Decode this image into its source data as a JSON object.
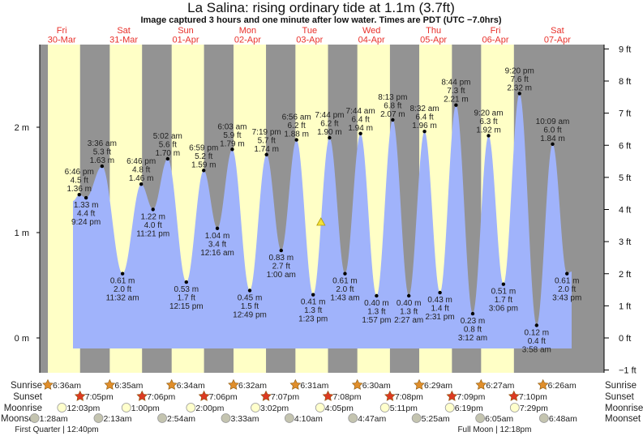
{
  "title": "La Salina: rising  ordinary tide at 1.1m (3.7ft)",
  "subtitle": "Image captured 3 hours and one minute after low water. Times are PDT (UTC −7.0hrs)",
  "colors": {
    "day": "#ffffc6",
    "night": "#939393",
    "water": "#a0b3fb",
    "date_label": "#e8302a",
    "sunrise": "#e08e2b",
    "sunset": "#dc3a22",
    "moonrise": "#ffffcc",
    "moonset": "#c4c4b0",
    "marker": "#f4e23a"
  },
  "chart_data": {
    "type": "area",
    "title": "La Salina: rising  ordinary tide at 1.1m (3.7ft)",
    "days": [
      {
        "weekday": "Fri",
        "date": "30-Mar"
      },
      {
        "weekday": "Sat",
        "date": "31-Mar"
      },
      {
        "weekday": "Sun",
        "date": "01-Apr"
      },
      {
        "weekday": "Mon",
        "date": "02-Apr"
      },
      {
        "weekday": "Tue",
        "date": "03-Apr"
      },
      {
        "weekday": "Wed",
        "date": "04-Apr"
      },
      {
        "weekday": "Thu",
        "date": "05-Apr"
      },
      {
        "weekday": "Fri",
        "date": "06-Apr"
      },
      {
        "weekday": "Sat",
        "date": "07-Apr"
      }
    ],
    "left_axis": {
      "unit": "m",
      "ticks": [
        "0 m",
        "1 m",
        "2 m"
      ],
      "tick_values": [
        0,
        1,
        2
      ]
    },
    "right_axis": {
      "unit": "ft",
      "ticks": [
        "9 ft",
        "8 ft",
        "7 ft",
        "6 ft",
        "5 ft",
        "4 ft",
        "3 ft",
        "2 ft",
        "1 ft",
        "0 ft",
        "−1 ft"
      ],
      "tick_values": [
        9,
        8,
        7,
        6,
        5,
        4,
        3,
        2,
        1,
        0,
        -1
      ]
    },
    "ylim_m": [
      -0.32,
      2.8
    ],
    "current": {
      "date": "03-Apr",
      "time": "4:24 pm",
      "m": 1.1,
      "ft": 3.7
    },
    "extremes": [
      {
        "date": "30-Mar",
        "time": "6:46 pm",
        "m": 1.36,
        "ft": 4.5,
        "type": "high"
      },
      {
        "date": "30-Mar",
        "time": "9:24 pm",
        "m": 1.33,
        "ft": 4.4,
        "type": "low"
      },
      {
        "date": "31-Mar",
        "time": "3:36 am",
        "m": 1.63,
        "ft": 5.3,
        "type": "high"
      },
      {
        "date": "31-Mar",
        "time": "11:32 am",
        "m": 0.61,
        "ft": 2.0,
        "type": "low"
      },
      {
        "date": "31-Mar",
        "time": "6:46 pm",
        "m": 1.46,
        "ft": 4.8,
        "type": "high"
      },
      {
        "date": "31-Mar",
        "time": "11:21 pm",
        "m": 1.22,
        "ft": 4.0,
        "type": "low"
      },
      {
        "date": "01-Apr",
        "time": "5:02 am",
        "m": 1.7,
        "ft": 5.6,
        "type": "high"
      },
      {
        "date": "01-Apr",
        "time": "12:15 pm",
        "m": 0.53,
        "ft": 1.7,
        "type": "low"
      },
      {
        "date": "01-Apr",
        "time": "6:59 pm",
        "m": 1.59,
        "ft": 5.2,
        "type": "high"
      },
      {
        "date": "02-Apr",
        "time": "12:16 am",
        "m": 1.04,
        "ft": 3.4,
        "type": "low"
      },
      {
        "date": "02-Apr",
        "time": "6:03 am",
        "m": 1.79,
        "ft": 5.9,
        "type": "high"
      },
      {
        "date": "02-Apr",
        "time": "12:49 pm",
        "m": 0.45,
        "ft": 1.5,
        "type": "low"
      },
      {
        "date": "02-Apr",
        "time": "7:19 pm",
        "m": 1.74,
        "ft": 5.7,
        "type": "high"
      },
      {
        "date": "03-Apr",
        "time": "1:00 am",
        "m": 0.83,
        "ft": 2.7,
        "type": "low"
      },
      {
        "date": "03-Apr",
        "time": "6:56 am",
        "m": 1.88,
        "ft": 6.2,
        "type": "high"
      },
      {
        "date": "03-Apr",
        "time": "1:23 pm",
        "m": 0.41,
        "ft": 1.3,
        "type": "low"
      },
      {
        "date": "03-Apr",
        "time": "7:44 pm",
        "m": 1.9,
        "ft": 6.2,
        "type": "high"
      },
      {
        "date": "04-Apr",
        "time": "1:43 am",
        "m": 0.61,
        "ft": 2.0,
        "type": "low"
      },
      {
        "date": "04-Apr",
        "time": "7:44 am",
        "m": 1.94,
        "ft": 6.4,
        "type": "high"
      },
      {
        "date": "04-Apr",
        "time": "1:57 pm",
        "m": 0.4,
        "ft": 1.3,
        "type": "low"
      },
      {
        "date": "04-Apr",
        "time": "8:13 pm",
        "m": 2.07,
        "ft": 6.8,
        "type": "high"
      },
      {
        "date": "05-Apr",
        "time": "2:27 am",
        "m": 0.4,
        "ft": 1.3,
        "type": "low"
      },
      {
        "date": "05-Apr",
        "time": "8:32 am",
        "m": 1.96,
        "ft": 6.4,
        "type": "high"
      },
      {
        "date": "05-Apr",
        "time": "2:31 pm",
        "m": 0.43,
        "ft": 1.4,
        "type": "low"
      },
      {
        "date": "05-Apr",
        "time": "8:44 pm",
        "m": 2.21,
        "ft": 7.3,
        "type": "high"
      },
      {
        "date": "06-Apr",
        "time": "3:12 am",
        "m": 0.23,
        "ft": 0.8,
        "type": "low"
      },
      {
        "date": "06-Apr",
        "time": "9:20 am",
        "m": 1.92,
        "ft": 6.3,
        "type": "high"
      },
      {
        "date": "06-Apr",
        "time": "3:06 pm",
        "m": 0.51,
        "ft": 1.7,
        "type": "low"
      },
      {
        "date": "06-Apr",
        "time": "9:20 pm",
        "m": 2.32,
        "ft": 7.6,
        "type": "high"
      },
      {
        "date": "07-Apr",
        "time": "3:58 am",
        "m": 0.12,
        "ft": 0.4,
        "type": "low"
      },
      {
        "date": "07-Apr",
        "time": "10:09 am",
        "m": 1.84,
        "ft": 6.0,
        "type": "high"
      },
      {
        "date": "07-Apr",
        "time": "3:43 pm",
        "m": 0.61,
        "ft": 2.0,
        "type": "low"
      }
    ]
  },
  "almanac": {
    "rows": [
      {
        "key": "sunrise",
        "label": "Sunrise",
        "icon": "sunrise-star-icon",
        "events": [
          {
            "date": "30-Mar",
            "time": "6:36am"
          },
          {
            "date": "31-Mar",
            "time": "6:35am"
          },
          {
            "date": "01-Apr",
            "time": "6:34am"
          },
          {
            "date": "02-Apr",
            "time": "6:32am"
          },
          {
            "date": "03-Apr",
            "time": "6:31am"
          },
          {
            "date": "04-Apr",
            "time": "6:30am"
          },
          {
            "date": "05-Apr",
            "time": "6:29am"
          },
          {
            "date": "06-Apr",
            "time": "6:27am"
          },
          {
            "date": "07-Apr",
            "time": "6:26am"
          }
        ]
      },
      {
        "key": "sunset",
        "label": "Sunset",
        "icon": "sunset-star-icon",
        "events": [
          {
            "date": "30-Mar",
            "time": "7:05pm"
          },
          {
            "date": "31-Mar",
            "time": "7:06pm"
          },
          {
            "date": "01-Apr",
            "time": "7:06pm"
          },
          {
            "date": "02-Apr",
            "time": "7:07pm"
          },
          {
            "date": "03-Apr",
            "time": "7:08pm"
          },
          {
            "date": "04-Apr",
            "time": "7:08pm"
          },
          {
            "date": "05-Apr",
            "time": "7:09pm"
          },
          {
            "date": "06-Apr",
            "time": "7:10pm"
          }
        ]
      },
      {
        "key": "moonrise",
        "label": "Moonrise",
        "icon": "moonrise-icon",
        "events": [
          {
            "date": "30-Mar",
            "time": "12:03pm"
          },
          {
            "date": "31-Mar",
            "time": "1:00pm"
          },
          {
            "date": "01-Apr",
            "time": "2:00pm"
          },
          {
            "date": "02-Apr",
            "time": "3:02pm"
          },
          {
            "date": "03-Apr",
            "time": "4:05pm"
          },
          {
            "date": "04-Apr",
            "time": "5:11pm"
          },
          {
            "date": "05-Apr",
            "time": "6:19pm"
          },
          {
            "date": "06-Apr",
            "time": "7:29pm"
          }
        ]
      },
      {
        "key": "moonset",
        "label": "Moonset",
        "icon": "moonset-icon",
        "events": [
          {
            "date": "30-Mar",
            "time": "1:28am"
          },
          {
            "date": "31-Mar",
            "time": "2:13am"
          },
          {
            "date": "01-Apr",
            "time": "2:54am"
          },
          {
            "date": "02-Apr",
            "time": "3:33am"
          },
          {
            "date": "03-Apr",
            "time": "4:10am"
          },
          {
            "date": "04-Apr",
            "time": "4:47am"
          },
          {
            "date": "05-Apr",
            "time": "5:25am"
          },
          {
            "date": "06-Apr",
            "time": "6:05am"
          },
          {
            "date": "07-Apr",
            "time": "6:48am"
          }
        ]
      }
    ],
    "phases": [
      {
        "text": "First Quarter | 12:40pm"
      },
      {
        "text": "Full Moon | 12:18pm",
        "date": "06-Apr",
        "time": "12:18pm"
      }
    ]
  }
}
